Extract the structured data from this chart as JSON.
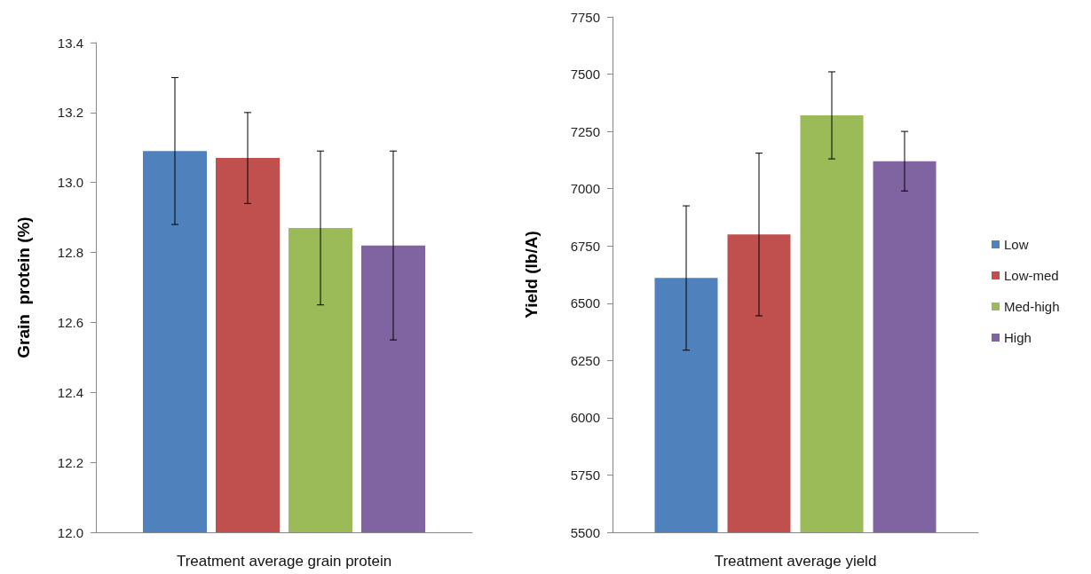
{
  "chart_data": [
    {
      "type": "bar",
      "xlabel": "Treatment average grain protein",
      "ylabel": "Grain  protein (%)",
      "categories": [
        null
      ],
      "ylim": [
        12.0,
        13.4
      ],
      "yticks": [
        {
          "value": 12.0,
          "label": "12.0"
        },
        12.2,
        12.4,
        12.6,
        12.8,
        {
          "value": 13.0,
          "label": "13.0"
        },
        13.2,
        13.4
      ],
      "grid": false,
      "legend": false,
      "series": [
        {
          "color": "#4f81bd",
          "values": [
            13.09
          ],
          "errors": [
            0.21
          ]
        },
        {
          "color": "#c0504d",
          "values": [
            13.07
          ],
          "errors": [
            0.13
          ]
        },
        {
          "color": "#9bbb59",
          "values": [
            12.87
          ],
          "errors": [
            0.22
          ]
        },
        {
          "color": "#8064a2",
          "values": [
            12.82
          ],
          "errors": [
            0.27
          ]
        }
      ]
    },
    {
      "type": "bar",
      "xlabel": "Treatment average yield",
      "ylabel": "Yield (lb/A)",
      "categories": [
        null
      ],
      "ylim": [
        5500,
        7750
      ],
      "yticks": [
        5500,
        5750,
        6000,
        6250,
        6500,
        6750,
        7000,
        7250,
        7500,
        7750
      ],
      "grid": false,
      "legend": "right",
      "series": [
        {
          "name": "Low",
          "color": "#4f81bd",
          "values": [
            6610
          ],
          "errors": [
            315
          ]
        },
        {
          "name": "Low-med",
          "color": "#c0504d",
          "values": [
            6800
          ],
          "errors": [
            355
          ]
        },
        {
          "name": "Med-high",
          "color": "#9bbb59",
          "values": [
            7320
          ],
          "errors": [
            190
          ]
        },
        {
          "name": "High",
          "color": "#8064a2",
          "values": [
            7120
          ],
          "errors": [
            130
          ]
        }
      ]
    }
  ]
}
